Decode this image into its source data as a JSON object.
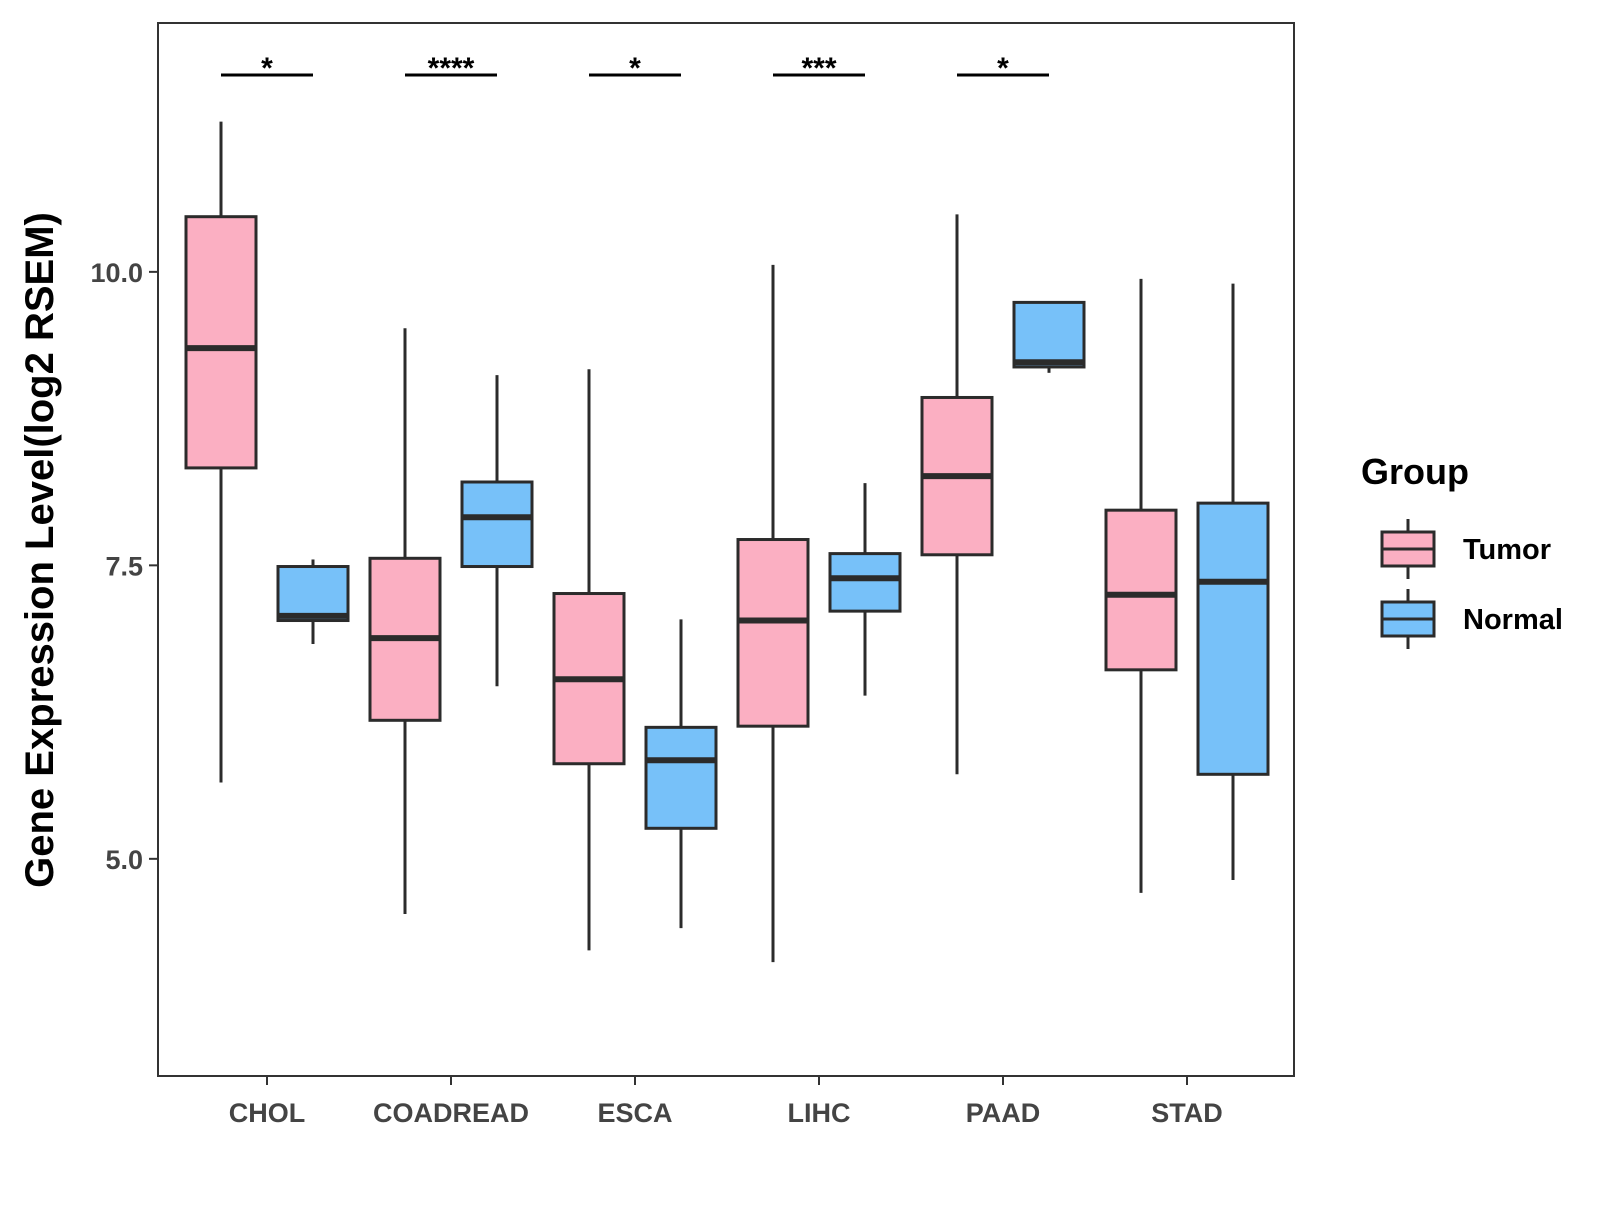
{
  "chart_data": {
    "type": "boxplot",
    "title": "",
    "xlabel": "",
    "ylabel": "Gene Expression Level(log2 RSEM)",
    "ylim": [
      3.15,
      12.12
    ],
    "yticks": [
      5.0,
      7.5,
      10.0
    ],
    "ytick_labels": [
      "5.0",
      "7.5",
      "10.0"
    ],
    "grid": false,
    "categories": [
      "CHOL",
      "COADREAD",
      "ESCA",
      "LIHC",
      "PAAD",
      "STAD"
    ],
    "legend": {
      "title": "Group",
      "position": "right",
      "entries": [
        "Tumor",
        "Normal"
      ]
    },
    "colors": {
      "Tumor": "#FBAFC2",
      "Normal": "#77C1F9",
      "stroke": "#2B2B2B",
      "axis": "#333333"
    },
    "series": [
      {
        "name": "Tumor",
        "boxes": [
          {
            "whisker_low": 5.65,
            "q1": 8.33,
            "median": 9.35,
            "q3": 10.47,
            "whisker_high": 11.28
          },
          {
            "whisker_low": 4.53,
            "q1": 6.18,
            "median": 6.88,
            "q3": 7.56,
            "whisker_high": 9.52
          },
          {
            "whisker_low": 4.22,
            "q1": 5.81,
            "median": 6.53,
            "q3": 7.26,
            "whisker_high": 9.17
          },
          {
            "whisker_low": 4.12,
            "q1": 6.13,
            "median": 7.03,
            "q3": 7.72,
            "whisker_high": 10.06
          },
          {
            "whisker_low": 5.72,
            "q1": 7.59,
            "median": 8.26,
            "q3": 8.93,
            "whisker_high": 10.49
          },
          {
            "whisker_low": 4.71,
            "q1": 6.61,
            "median": 7.25,
            "q3": 7.97,
            "whisker_high": 9.94
          }
        ]
      },
      {
        "name": "Normal",
        "boxes": [
          {
            "whisker_low": 6.83,
            "q1": 7.03,
            "median": 7.07,
            "q3": 7.49,
            "whisker_high": 7.55
          },
          {
            "whisker_low": 6.47,
            "q1": 7.49,
            "median": 7.91,
            "q3": 8.21,
            "whisker_high": 9.12
          },
          {
            "whisker_low": 4.41,
            "q1": 5.26,
            "median": 5.84,
            "q3": 6.12,
            "whisker_high": 7.04
          },
          {
            "whisker_low": 6.39,
            "q1": 7.11,
            "median": 7.39,
            "q3": 7.6,
            "whisker_high": 8.2
          },
          {
            "whisker_low": 9.14,
            "q1": 9.19,
            "median": 9.23,
            "q3": 9.74,
            "whisker_high": 9.74
          },
          {
            "whisker_low": 4.82,
            "q1": 5.72,
            "median": 7.36,
            "q3": 8.03,
            "whisker_high": 9.9
          }
        ]
      }
    ],
    "significance": [
      {
        "category": "CHOL",
        "label": "*"
      },
      {
        "category": "COADREAD",
        "label": "****"
      },
      {
        "category": "ESCA",
        "label": "*"
      },
      {
        "category": "LIHC",
        "label": "***"
      },
      {
        "category": "PAAD",
        "label": "*"
      }
    ]
  }
}
